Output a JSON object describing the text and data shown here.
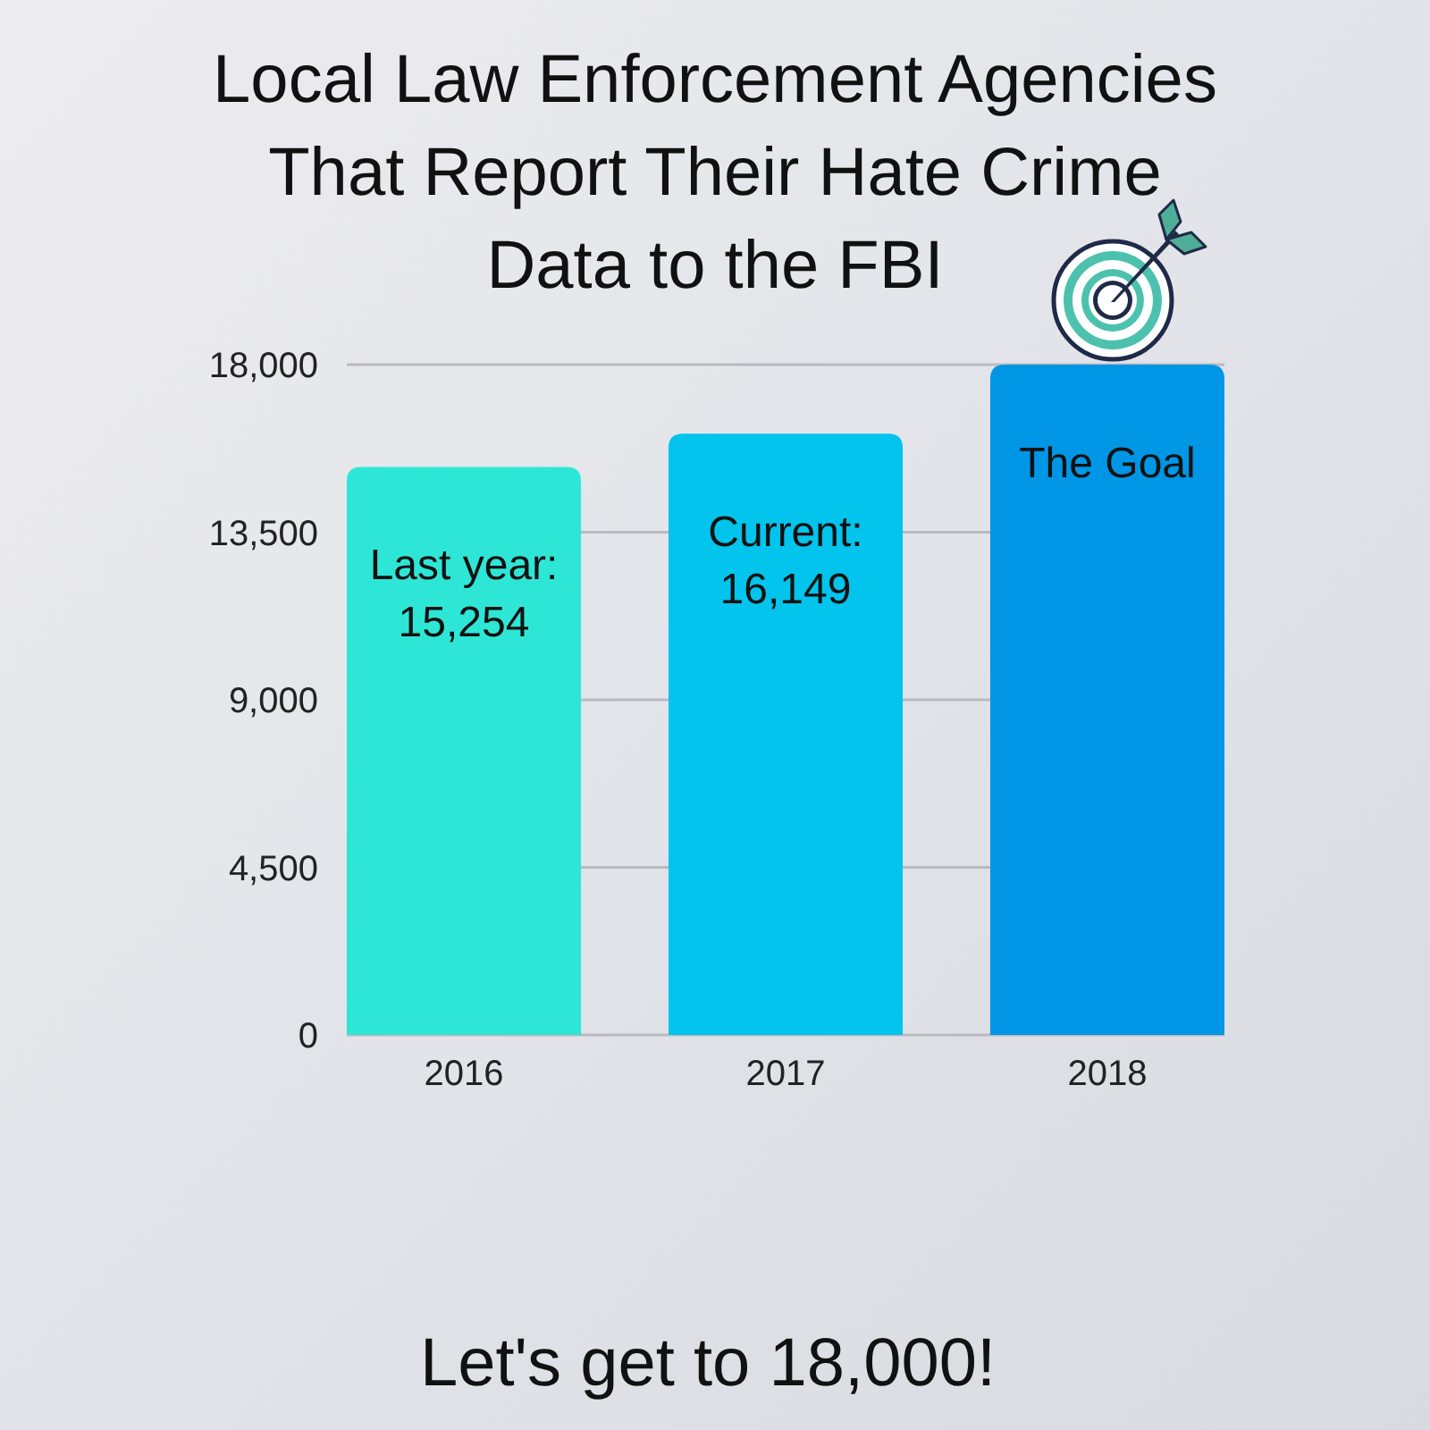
{
  "chart_data": {
    "type": "bar",
    "title": "Local Law Enforcement Agencies That Report Their Hate Crime Data to the FBI",
    "categories": [
      "2016",
      "2017",
      "2018"
    ],
    "values": [
      15254,
      16149,
      18000
    ],
    "colors": [
      "#2ee6d6",
      "#02c4ec",
      "#0096e6"
    ],
    "ylim": [
      0,
      18000
    ],
    "yticks": [
      0,
      {
        "value": 4500,
        "label": "4,500"
      },
      {
        "value": 9000,
        "label": "9,000"
      },
      {
        "value": 13500,
        "label": "13,500"
      },
      {
        "value": 18000,
        "label": "18,000"
      }
    ],
    "grid": "y",
    "value_labels": [
      "Last year:\n15,254",
      "Current:\n16,149",
      "The Goal"
    ],
    "annotations": [
      "Let's get to 18,000!"
    ]
  }
}
